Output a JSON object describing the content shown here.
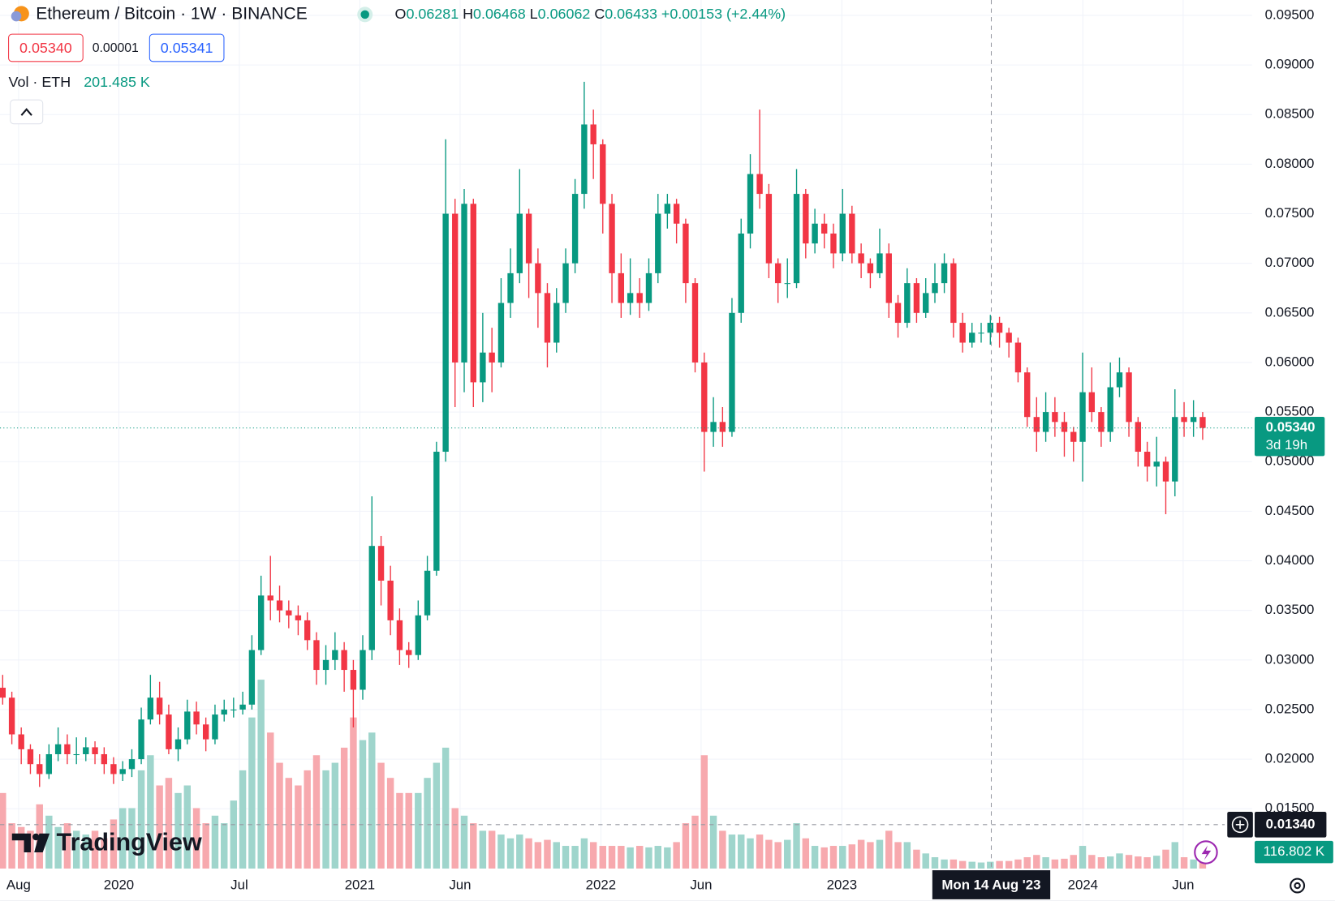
{
  "chart_data": {
    "type": "candlestick",
    "title": "Ethereum / Bitcoin · 1W · BINANCE",
    "x": [
      2019.518,
      2019.556,
      2019.595,
      2019.633,
      2019.671,
      2019.71,
      2019.748,
      2019.786,
      2019.824,
      2019.863,
      2019.901,
      2019.939,
      2019.978,
      2020.016,
      2020.054,
      2020.093,
      2020.131,
      2020.169,
      2020.207,
      2020.246,
      2020.284,
      2020.322,
      2020.361,
      2020.399,
      2020.437,
      2020.476,
      2020.514,
      2020.552,
      2020.59,
      2020.629,
      2020.667,
      2020.705,
      2020.744,
      2020.782,
      2020.82,
      2020.859,
      2020.897,
      2020.935,
      2020.973,
      2021.012,
      2021.05,
      2021.088,
      2021.127,
      2021.165,
      2021.203,
      2021.242,
      2021.28,
      2021.318,
      2021.356,
      2021.395,
      2021.433,
      2021.471,
      2021.51,
      2021.548,
      2021.586,
      2021.625,
      2021.663,
      2021.701,
      2021.739,
      2021.778,
      2021.816,
      2021.854,
      2021.893,
      2021.931,
      2021.969,
      2022.008,
      2022.046,
      2022.084,
      2022.122,
      2022.161,
      2022.199,
      2022.237,
      2022.276,
      2022.314,
      2022.352,
      2022.391,
      2022.429,
      2022.467,
      2022.505,
      2022.544,
      2022.582,
      2022.62,
      2022.659,
      2022.697,
      2022.735,
      2022.774,
      2022.812,
      2022.85,
      2022.888,
      2022.927,
      2022.965,
      2023.003,
      2023.042,
      2023.08,
      2023.118,
      2023.157,
      2023.195,
      2023.233,
      2023.271,
      2023.31,
      2023.348,
      2023.386,
      2023.425,
      2023.463,
      2023.501,
      2023.54,
      2023.578,
      2023.616,
      2023.654,
      2023.693,
      2023.731,
      2023.769,
      2023.808,
      2023.846,
      2023.884,
      2023.923,
      2023.961,
      2023.999,
      2024.037,
      2024.076,
      2024.114,
      2024.152,
      2024.191,
      2024.229,
      2024.267,
      2024.306,
      2024.344,
      2024.382,
      2024.42,
      2024.459,
      2024.497
    ],
    "open": [
      0.0272,
      0.0262,
      0.0225,
      0.021,
      0.0195,
      0.0185,
      0.0205,
      0.0215,
      0.0205,
      0.0205,
      0.0212,
      0.0205,
      0.0195,
      0.0185,
      0.019,
      0.02,
      0.024,
      0.0262,
      0.0245,
      0.021,
      0.022,
      0.0248,
      0.0235,
      0.022,
      0.0245,
      0.025,
      0.025,
      0.0255,
      0.031,
      0.0365,
      0.036,
      0.035,
      0.0345,
      0.034,
      0.032,
      0.029,
      0.03,
      0.031,
      0.029,
      0.027,
      0.031,
      0.0415,
      0.038,
      0.034,
      0.031,
      0.0305,
      0.0345,
      0.039,
      0.051,
      0.075,
      0.06,
      0.076,
      0.058,
      0.061,
      0.06,
      0.066,
      0.069,
      0.075,
      0.07,
      0.067,
      0.062,
      0.066,
      0.07,
      0.077,
      0.084,
      0.082,
      0.076,
      0.069,
      0.066,
      0.067,
      0.066,
      0.069,
      0.075,
      0.076,
      0.074,
      0.068,
      0.06,
      0.053,
      0.054,
      0.053,
      0.065,
      0.073,
      0.079,
      0.077,
      0.07,
      0.068,
      0.068,
      0.077,
      0.072,
      0.074,
      0.073,
      0.071,
      0.075,
      0.071,
      0.07,
      0.069,
      0.071,
      0.066,
      0.064,
      0.068,
      0.065,
      0.067,
      0.068,
      0.07,
      0.064,
      0.062,
      0.063,
      0.063,
      0.064,
      0.063,
      0.062,
      0.059,
      0.0545,
      0.053,
      0.055,
      0.054,
      0.053,
      0.052,
      0.057,
      0.055,
      0.053,
      0.0575,
      0.059,
      0.054,
      0.051,
      0.0495,
      0.05,
      0.048,
      0.0545,
      0.054,
      0.0545
    ],
    "high": [
      0.0285,
      0.0268,
      0.0232,
      0.0215,
      0.0205,
      0.0215,
      0.0232,
      0.0225,
      0.0222,
      0.0222,
      0.0218,
      0.0212,
      0.0202,
      0.0198,
      0.021,
      0.0252,
      0.0285,
      0.0278,
      0.0255,
      0.0232,
      0.026,
      0.0258,
      0.0242,
      0.0255,
      0.026,
      0.0262,
      0.0268,
      0.0325,
      0.0385,
      0.0405,
      0.0375,
      0.036,
      0.0355,
      0.0348,
      0.0328,
      0.0315,
      0.0328,
      0.0318,
      0.03,
      0.0325,
      0.0465,
      0.0425,
      0.0395,
      0.0352,
      0.0318,
      0.036,
      0.0405,
      0.052,
      0.0825,
      0.0765,
      0.0775,
      0.0765,
      0.065,
      0.0635,
      0.0685,
      0.0715,
      0.0795,
      0.0755,
      0.0715,
      0.068,
      0.0675,
      0.0715,
      0.0785,
      0.0883,
      0.0855,
      0.0825,
      0.077,
      0.071,
      0.0705,
      0.0685,
      0.0705,
      0.077,
      0.077,
      0.0765,
      0.0745,
      0.0685,
      0.061,
      0.0565,
      0.0555,
      0.0665,
      0.0745,
      0.081,
      0.0855,
      0.078,
      0.0705,
      0.0705,
      0.0795,
      0.0775,
      0.0755,
      0.075,
      0.074,
      0.0775,
      0.0758,
      0.072,
      0.0705,
      0.0735,
      0.072,
      0.0668,
      0.0695,
      0.0685,
      0.0685,
      0.07,
      0.071,
      0.0705,
      0.065,
      0.064,
      0.064,
      0.0648,
      0.0646,
      0.0635,
      0.0625,
      0.0595,
      0.0565,
      0.057,
      0.0565,
      0.055,
      0.0535,
      0.061,
      0.0595,
      0.0555,
      0.06,
      0.0605,
      0.0595,
      0.0545,
      0.052,
      0.0525,
      0.0505,
      0.0573,
      0.056,
      0.0562,
      0.055
    ],
    "low": [
      0.0255,
      0.0215,
      0.0195,
      0.0185,
      0.0172,
      0.018,
      0.0198,
      0.0195,
      0.0195,
      0.0198,
      0.0195,
      0.0185,
      0.0175,
      0.0178,
      0.0182,
      0.0195,
      0.0235,
      0.0235,
      0.0205,
      0.0198,
      0.0215,
      0.0225,
      0.0208,
      0.0215,
      0.0238,
      0.0242,
      0.0245,
      0.025,
      0.0305,
      0.034,
      0.0338,
      0.0332,
      0.0325,
      0.031,
      0.0275,
      0.0275,
      0.029,
      0.0268,
      0.0232,
      0.026,
      0.03,
      0.0355,
      0.0325,
      0.0295,
      0.0292,
      0.03,
      0.034,
      0.0385,
      0.05,
      0.0555,
      0.057,
      0.0555,
      0.056,
      0.057,
      0.0595,
      0.0645,
      0.068,
      0.0665,
      0.0635,
      0.0595,
      0.061,
      0.065,
      0.069,
      0.0755,
      0.0785,
      0.073,
      0.066,
      0.0645,
      0.0648,
      0.0645,
      0.0652,
      0.068,
      0.0735,
      0.072,
      0.066,
      0.059,
      0.049,
      0.0515,
      0.0515,
      0.0525,
      0.064,
      0.0715,
      0.0755,
      0.0685,
      0.066,
      0.0665,
      0.0675,
      0.0705,
      0.071,
      0.0715,
      0.0695,
      0.0702,
      0.07,
      0.0685,
      0.0675,
      0.0685,
      0.0645,
      0.0625,
      0.0635,
      0.064,
      0.0645,
      0.066,
      0.067,
      0.0625,
      0.061,
      0.0615,
      0.062,
      0.0618,
      0.0615,
      0.0605,
      0.058,
      0.0535,
      0.051,
      0.052,
      0.0525,
      0.0505,
      0.05,
      0.048,
      0.054,
      0.0515,
      0.052,
      0.0565,
      0.0525,
      0.0495,
      0.048,
      0.0475,
      0.0447,
      0.0465,
      0.0525,
      0.0525,
      0.0522
    ],
    "close": [
      0.0262,
      0.0225,
      0.021,
      0.0195,
      0.0185,
      0.0205,
      0.0215,
      0.0205,
      0.0205,
      0.0212,
      0.0205,
      0.0195,
      0.0185,
      0.019,
      0.02,
      0.024,
      0.0262,
      0.0245,
      0.021,
      0.022,
      0.0248,
      0.0235,
      0.022,
      0.0245,
      0.025,
      0.025,
      0.0255,
      0.031,
      0.0365,
      0.036,
      0.035,
      0.0345,
      0.034,
      0.032,
      0.029,
      0.03,
      0.031,
      0.029,
      0.027,
      0.031,
      0.0415,
      0.038,
      0.034,
      0.031,
      0.0305,
      0.0345,
      0.039,
      0.051,
      0.075,
      0.06,
      0.076,
      0.058,
      0.061,
      0.06,
      0.066,
      0.069,
      0.075,
      0.07,
      0.067,
      0.062,
      0.066,
      0.07,
      0.077,
      0.084,
      0.082,
      0.076,
      0.069,
      0.066,
      0.067,
      0.066,
      0.069,
      0.075,
      0.076,
      0.074,
      0.068,
      0.06,
      0.053,
      0.054,
      0.053,
      0.065,
      0.073,
      0.079,
      0.077,
      0.07,
      0.068,
      0.068,
      0.077,
      0.072,
      0.074,
      0.073,
      0.071,
      0.075,
      0.071,
      0.07,
      0.069,
      0.071,
      0.066,
      0.064,
      0.068,
      0.065,
      0.067,
      0.068,
      0.07,
      0.064,
      0.062,
      0.063,
      0.063,
      0.064,
      0.063,
      0.062,
      0.059,
      0.0545,
      0.053,
      0.055,
      0.054,
      0.053,
      0.052,
      0.057,
      0.055,
      0.053,
      0.0575,
      0.059,
      0.054,
      0.051,
      0.0495,
      0.05,
      0.048,
      0.0545,
      0.054,
      0.0545,
      0.0534
    ],
    "volume": [
      1000000,
      600000,
      550000,
      500000,
      850000,
      700000,
      550000,
      600000,
      500000,
      450000,
      500000,
      400000,
      650000,
      800000,
      800000,
      1300000,
      1500000,
      1100000,
      1200000,
      1000000,
      1100000,
      800000,
      600000,
      700000,
      600000,
      900000,
      1300000,
      2000000,
      2500000,
      1800000,
      1400000,
      1200000,
      1100000,
      1300000,
      1500000,
      1300000,
      1400000,
      1600000,
      2000000,
      1700000,
      1800000,
      1400000,
      1200000,
      1000000,
      1000000,
      1000000,
      1200000,
      1400000,
      1600000,
      800000,
      700000,
      600000,
      500000,
      500000,
      450000,
      400000,
      450000,
      400000,
      350000,
      380000,
      350000,
      300000,
      300000,
      400000,
      350000,
      300000,
      300000,
      300000,
      280000,
      300000,
      280000,
      300000,
      280000,
      350000,
      600000,
      700000,
      1500000,
      700000,
      500000,
      450000,
      450000,
      400000,
      450000,
      380000,
      350000,
      380000,
      600000,
      400000,
      300000,
      280000,
      300000,
      300000,
      320000,
      380000,
      350000,
      380000,
      500000,
      350000,
      350000,
      250000,
      200000,
      150000,
      120000,
      120000,
      100000,
      90000,
      80000,
      90000,
      100000,
      100000,
      120000,
      150000,
      180000,
      150000,
      120000,
      130000,
      180000,
      300000,
      180000,
      150000,
      160000,
      200000,
      180000,
      160000,
      150000,
      170000,
      250000,
      350000,
      150000,
      120000,
      116802
    ],
    "colors": {
      "up": "#089981",
      "down": "#f23645",
      "volume_up": "#9fd5cc",
      "volume_down": "#f7a9ae"
    },
    "xlim": [
      2019.507,
      2024.702
    ],
    "ylim": [
      0.00897,
      0.09655
    ],
    "vlim": [
      0,
      2600000
    ],
    "xticks": [
      {
        "value": 2019.584,
        "label": "Aug"
      },
      2020,
      {
        "value": 2020.5,
        "label": "Jul"
      },
      2021,
      {
        "value": 2021.416,
        "label": "Jun"
      },
      2022,
      {
        "value": 2022.416,
        "label": "Jun"
      },
      2023,
      2024,
      {
        "value": 2024.416,
        "label": "Jun"
      }
    ],
    "yticks": [
      {
        "value": 0.015,
        "label": "0.01500"
      },
      {
        "value": 0.02,
        "label": "0.02000"
      },
      {
        "value": 0.025,
        "label": "0.02500"
      },
      {
        "value": 0.03,
        "label": "0.03000"
      },
      {
        "value": 0.035,
        "label": "0.03500"
      },
      {
        "value": 0.04,
        "label": "0.04000"
      },
      {
        "value": 0.045,
        "label": "0.04500"
      },
      {
        "value": 0.05,
        "label": "0.05000"
      },
      {
        "value": 0.055,
        "label": "0.05500"
      },
      {
        "value": 0.06,
        "label": "0.06000"
      },
      {
        "value": 0.065,
        "label": "0.06500"
      },
      {
        "value": 0.07,
        "label": "0.07000"
      },
      {
        "value": 0.075,
        "label": "0.07500"
      },
      {
        "value": 0.08,
        "label": "0.08000"
      },
      {
        "value": 0.085,
        "label": "0.08500"
      },
      {
        "value": 0.09,
        "label": "0.09000"
      },
      {
        "value": 0.095,
        "label": "0.09500"
      }
    ],
    "grid": true,
    "last_price": {
      "value": 0.0534,
      "label": "0.05340",
      "countdown": "3d 19h"
    },
    "last_volume_label": "116.802 K",
    "crosshair": {
      "x": 2023.62,
      "y": 0.0134,
      "x_label": "Mon 14 Aug '23",
      "y_label": "0.01340"
    }
  },
  "ui": {
    "ohlc": [
      [
        "O",
        "0.06281"
      ],
      [
        "H",
        "0.06468"
      ],
      [
        "L",
        "0.06062"
      ],
      [
        "C",
        "0.06433"
      ]
    ],
    "change": "+0.00153 (+2.44%)",
    "sell": "0.05340",
    "spread": "0.00001",
    "buy": "0.05341",
    "volume_title": "Vol · ETH",
    "volume_value": "201.485 K",
    "logo": "TradingView"
  }
}
